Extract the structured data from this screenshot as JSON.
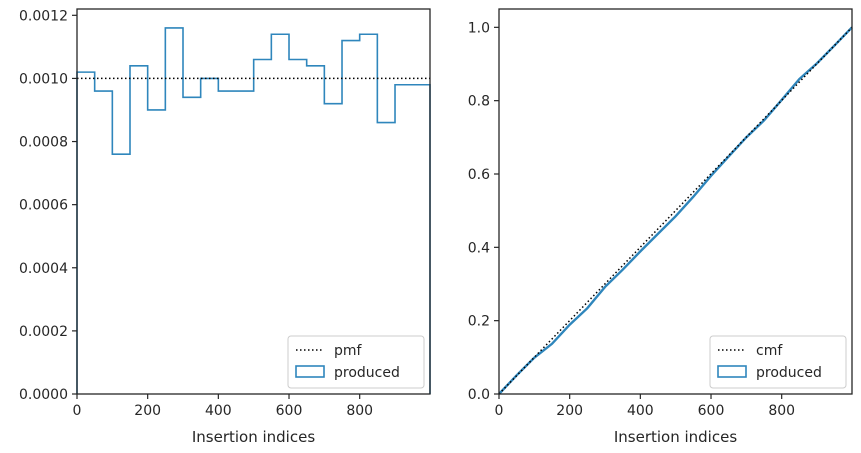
{
  "chart_data": [
    {
      "type": "step",
      "xlabel": "Insertion indices",
      "ylabel": "",
      "xlim": [
        0,
        999
      ],
      "ylim": [
        0,
        0.00122
      ],
      "x_ticks": [
        0,
        200,
        400,
        600,
        800
      ],
      "x_tick_labels": [
        "0",
        "200",
        "400",
        "600",
        "800"
      ],
      "y_ticks": [
        0,
        0.0002,
        0.0004,
        0.0006,
        0.0008,
        0.001,
        0.0012
      ],
      "y_tick_labels": [
        "0.0000",
        "0.0002",
        "0.0004",
        "0.0006",
        "0.0008",
        "0.0010",
        "0.0012"
      ],
      "grid": false,
      "legend_position": "bottom-right",
      "series": [
        {
          "name": "pmf",
          "style": "dotted",
          "color": "#000000",
          "x": [
            0,
            999
          ],
          "values": [
            0.001,
            0.001
          ]
        },
        {
          "name": "produced",
          "style": "step-histogram",
          "color": "#2f86bc",
          "bin_edges": [
            0,
            50,
            100,
            150,
            200,
            250,
            300,
            350,
            400,
            450,
            500,
            550,
            600,
            650,
            700,
            750,
            800,
            850,
            900,
            950,
            999
          ],
          "values": [
            0.00102,
            0.00096,
            0.00076,
            0.00104,
            0.0009,
            0.00116,
            0.00094,
            0.001,
            0.00096,
            0.00096,
            0.00106,
            0.00114,
            0.00106,
            0.00104,
            0.00092,
            0.00112,
            0.00114,
            0.00086,
            0.00098,
            0.00098
          ]
        }
      ]
    },
    {
      "type": "line",
      "xlabel": "Insertion indices",
      "ylabel": "",
      "xlim": [
        0,
        999
      ],
      "ylim": [
        0,
        1.05
      ],
      "x_ticks": [
        0,
        200,
        400,
        600,
        800
      ],
      "x_tick_labels": [
        "0",
        "200",
        "400",
        "600",
        "800"
      ],
      "y_ticks": [
        0,
        0.2,
        0.4,
        0.6,
        0.8,
        1.0
      ],
      "y_tick_labels": [
        "0.0",
        "0.2",
        "0.4",
        "0.6",
        "0.8",
        "1.0"
      ],
      "grid": false,
      "legend_position": "bottom-right",
      "series": [
        {
          "name": "cmf",
          "style": "dotted",
          "color": "#000000",
          "x": [
            0,
            999
          ],
          "values": [
            0,
            1
          ]
        },
        {
          "name": "produced",
          "style": "solid",
          "color": "#2f86bc",
          "x": [
            0,
            50,
            100,
            150,
            200,
            250,
            300,
            350,
            400,
            450,
            500,
            550,
            600,
            650,
            700,
            750,
            800,
            850,
            900,
            950,
            999
          ],
          "values": [
            0,
            0.051,
            0.099,
            0.137,
            0.189,
            0.234,
            0.292,
            0.339,
            0.389,
            0.437,
            0.485,
            0.538,
            0.595,
            0.648,
            0.7,
            0.746,
            0.802,
            0.859,
            0.902,
            0.951,
            1.0
          ]
        }
      ]
    }
  ]
}
